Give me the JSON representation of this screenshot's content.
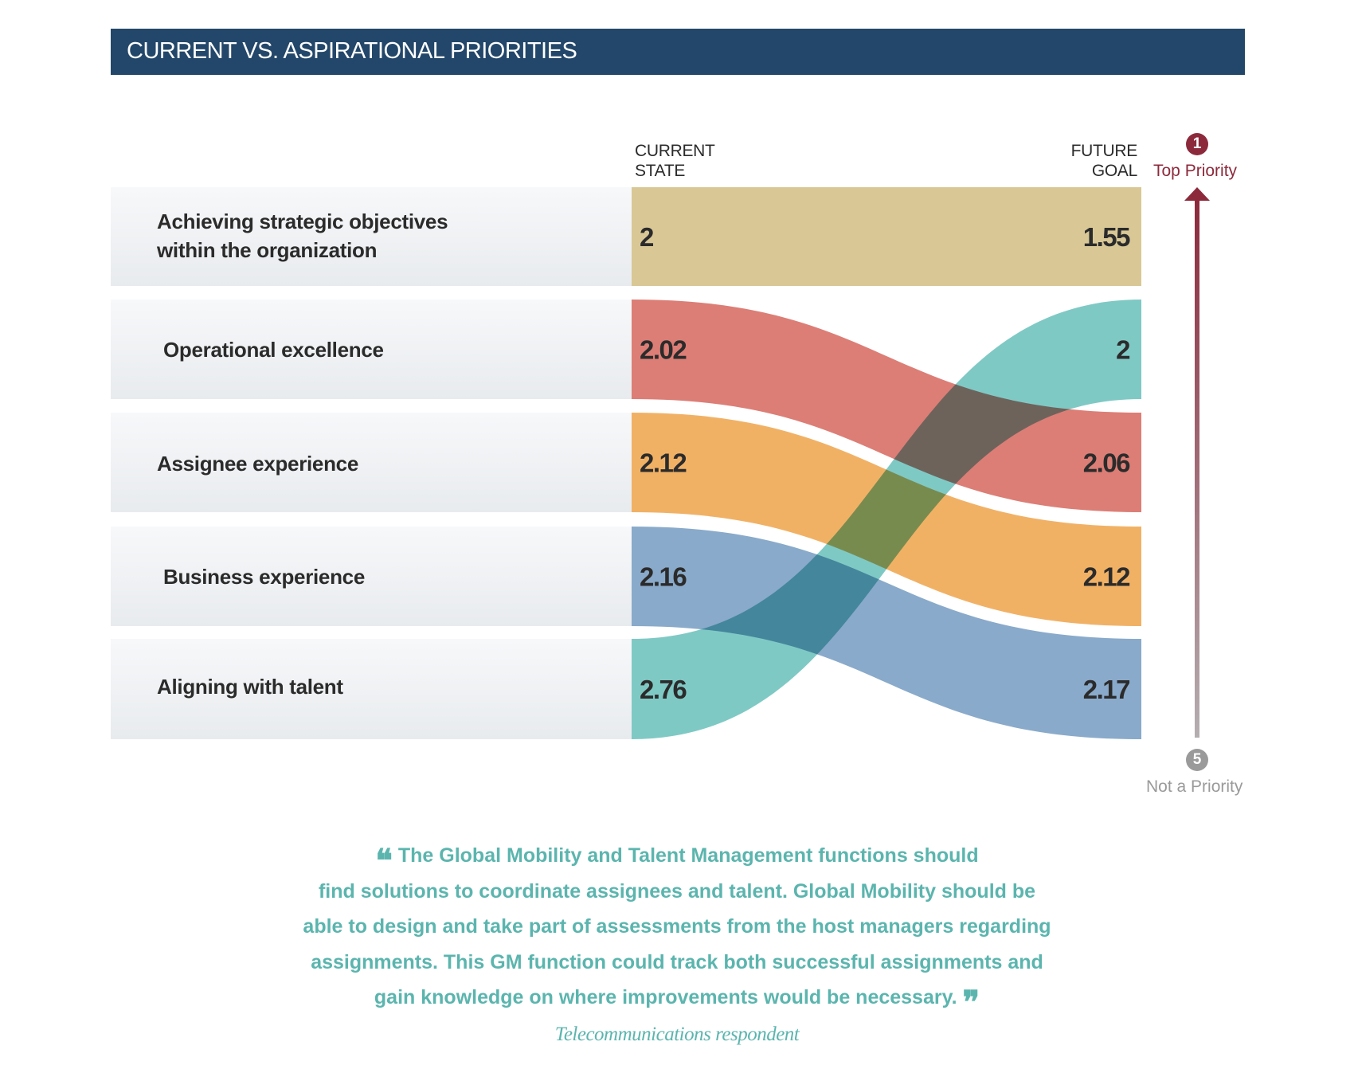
{
  "title": "CURRENT VS. ASPIRATIONAL PRIORITIES",
  "columns": {
    "current_line1": "CURRENT",
    "current_line2": "STATE",
    "future_line1": "FUTURE",
    "future_line2": "GOAL"
  },
  "scale": {
    "top_number": "1",
    "top_label": "Top Priority",
    "top_color": "#8c2a3c",
    "bottom_number": "5",
    "bottom_label": "Not a Priority",
    "bottom_color": "#9a9a9a"
  },
  "rows": [
    {
      "label_line1": "Achieving strategic objectives",
      "label_line2": "within the organization"
    },
    {
      "label_line1": "Operational excellence",
      "label_line2": ""
    },
    {
      "label_line1": "Assignee experience",
      "label_line2": ""
    },
    {
      "label_line1": "Business experience",
      "label_line2": ""
    },
    {
      "label_line1": "Aligning with talent",
      "label_line2": ""
    }
  ],
  "chart_data": {
    "type": "slope",
    "title": "CURRENT VS. ASPIRATIONAL PRIORITIES",
    "scale_note": "1 = Top Priority, 5 = Not a Priority",
    "x": [
      "Current State",
      "Future Goal"
    ],
    "series": [
      {
        "name": "Achieving strategic objectives within the organization",
        "current": 2,
        "current_label": "2",
        "future": 1.55,
        "future_label": "1.55",
        "current_rank": 1,
        "future_rank": 1,
        "color": "#d9c896"
      },
      {
        "name": "Operational excellence",
        "current": 2.02,
        "current_label": "2.02",
        "future": 2.06,
        "future_label": "2.06",
        "current_rank": 2,
        "future_rank": 3,
        "color": "#d9736a"
      },
      {
        "name": "Assignee experience",
        "current": 2.12,
        "current_label": "2.12",
        "future": 2.12,
        "future_label": "2.12",
        "current_rank": 3,
        "future_rank": 4,
        "color": "#f0ab58"
      },
      {
        "name": "Business experience",
        "current": 2.16,
        "current_label": "2.16",
        "future": 2.17,
        "future_label": "2.17",
        "current_rank": 4,
        "future_rank": 5,
        "color": "#7fa3c6"
      },
      {
        "name": "Aligning with talent",
        "current": 2.76,
        "current_label": "2.76",
        "future": 2,
        "future_label": "2",
        "current_rank": 5,
        "future_rank": 2,
        "color": "#74c5c0"
      }
    ]
  },
  "quote": {
    "open_mark": "❝",
    "close_mark": "❞",
    "lines": [
      "The Global Mobility and Talent Management functions should",
      "find solutions to coordinate assignees and talent. Global Mobility should be",
      "able to design and take part of assessments from the host managers regarding",
      "assignments. This GM function could track both successful assignments and",
      "gain knowledge on where improvements would be necessary."
    ],
    "attribution": "Telecommunications respondent"
  }
}
